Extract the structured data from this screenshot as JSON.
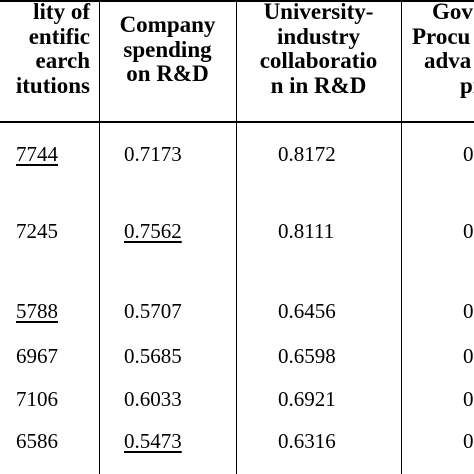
{
  "table": {
    "headers": [
      {
        "lines": [
          "lity of",
          "entific",
          "earch",
          "itutions"
        ]
      },
      {
        "lines": [
          "Company",
          "spending",
          "on R&D"
        ]
      },
      {
        "lines": [
          "University-",
          "industry",
          "collaboratio",
          "n in R&D"
        ]
      },
      {
        "lines": [
          "Gov",
          "Procu",
          "adva",
          "pr"
        ]
      }
    ],
    "rows": [
      [
        "7744",
        "0.7173",
        "0.8172",
        "0"
      ],
      [
        "7245",
        "0.7562",
        "0.8111",
        "0"
      ],
      [
        "5788",
        "0.5707",
        "0.6456",
        "0"
      ],
      [
        "6967",
        "0.5685",
        "0.6598",
        "0"
      ],
      [
        "7106",
        "0.6033",
        "0.6921",
        "0"
      ],
      [
        "6586",
        "0.5473",
        "0.6316",
        "0"
      ]
    ],
    "underlined_cells": [
      [
        0,
        0
      ],
      [
        1,
        1
      ],
      [
        2,
        0
      ],
      [
        5,
        1
      ]
    ]
  }
}
